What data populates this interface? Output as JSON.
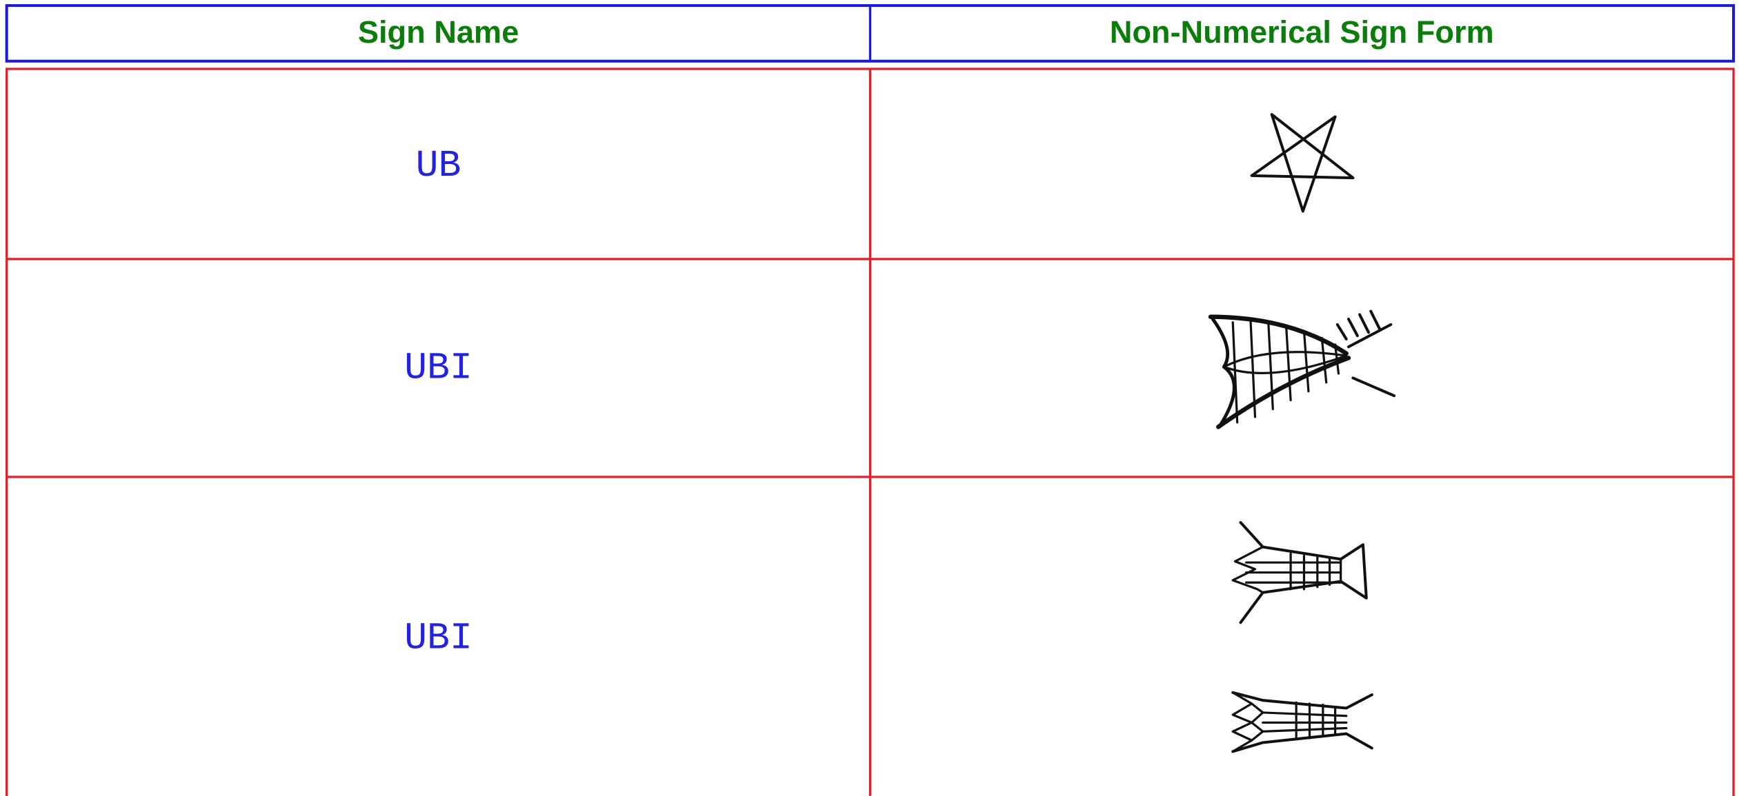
{
  "header": {
    "columns": [
      "Sign Name",
      "Non-Numerical Sign Form"
    ]
  },
  "table": {
    "rows": [
      [
        "UB"
      ],
      [
        "UBI"
      ],
      [
        "UBI"
      ]
    ]
  }
}
